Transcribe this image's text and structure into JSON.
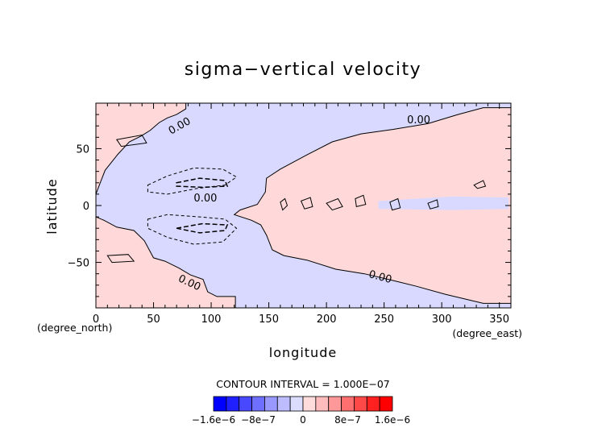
{
  "chart_data": {
    "type": "heatmap",
    "title": "sigma−vertical velocity",
    "xlabel": "longitude",
    "ylabel": "latitude",
    "x_unit": "(degree_east)",
    "y_unit": "(degree_north)",
    "xlim": [
      0,
      360
    ],
    "ylim": [
      -90,
      90
    ],
    "x_ticks": [
      0,
      50,
      100,
      150,
      200,
      250,
      300,
      350
    ],
    "y_ticks": [
      -50,
      0,
      50
    ],
    "contour_interval_text": "CONTOUR INTERVAL = 1.000E−07",
    "contour_label": "0.00",
    "colorbar": {
      "tick_labels": [
        "−1.6e−6",
        "−8e−7",
        "0",
        "8e−7",
        "1.6e−6"
      ],
      "tick_values": [
        -1.6e-06,
        -8e-07,
        0,
        8e-07,
        1.6e-06
      ],
      "colors": [
        "#0000ff",
        "#2020ff",
        "#4848ff",
        "#6f6fff",
        "#9898ff",
        "#bcbcff",
        "#dcdcff",
        "#ffdcdc",
        "#ffbcbc",
        "#ff9898",
        "#ff6f6f",
        "#ff4848",
        "#ff2020",
        "#ff0000"
      ]
    },
    "positive_color": "#ffd9d9",
    "negative_color": "#d9d9ff",
    "positive_regions": [
      [
        [
          0,
          90
        ],
        [
          78,
          90
        ],
        [
          78,
          85
        ],
        [
          70,
          80
        ],
        [
          62,
          77
        ],
        [
          55,
          73
        ],
        [
          47,
          66
        ],
        [
          39,
          61
        ],
        [
          29,
          56
        ],
        [
          19,
          45
        ],
        [
          8,
          31
        ],
        [
          3,
          18
        ],
        [
          0,
          10
        ]
      ],
      [
        [
          0,
          -10
        ],
        [
          7,
          -13
        ],
        [
          18,
          -19
        ],
        [
          33,
          -22
        ],
        [
          42,
          -31
        ],
        [
          50,
          -46
        ],
        [
          60,
          -49
        ],
        [
          72,
          -55
        ],
        [
          82,
          -61
        ],
        [
          93,
          -65
        ],
        [
          97,
          -76
        ],
        [
          105,
          -80
        ],
        [
          121,
          -80
        ],
        [
          121,
          -90
        ],
        [
          0,
          -90
        ]
      ],
      [
        [
          360,
          86
        ],
        [
          336,
          86
        ],
        [
          314,
          80
        ],
        [
          288,
          72
        ],
        [
          258,
          67
        ],
        [
          230,
          63
        ],
        [
          205,
          56
        ],
        [
          182,
          44
        ],
        [
          160,
          32
        ],
        [
          148,
          24
        ],
        [
          147,
          12
        ],
        [
          140,
          1
        ],
        [
          125,
          -4
        ],
        [
          120,
          -8
        ],
        [
          135,
          -13
        ],
        [
          143,
          -17
        ],
        [
          148,
          -26
        ],
        [
          153,
          -39
        ],
        [
          163,
          -44
        ],
        [
          183,
          -48
        ],
        [
          208,
          -56
        ],
        [
          233,
          -60
        ],
        [
          258,
          -66
        ],
        [
          278,
          -71
        ],
        [
          303,
          -78
        ],
        [
          336,
          -86
        ],
        [
          360,
          -86
        ]
      ]
    ],
    "negative_regions_in_positive": [
      [
        [
          245,
          4
        ],
        [
          310,
          8
        ],
        [
          358,
          7
        ],
        [
          358,
          -3
        ],
        [
          310,
          -4
        ],
        [
          245,
          -3
        ]
      ]
    ],
    "dashed_contours": [
      [
        [
          45,
          18
        ],
        [
          62,
          26
        ],
        [
          85,
          33
        ],
        [
          110,
          32
        ],
        [
          122,
          25
        ],
        [
          112,
          18
        ],
        [
          88,
          15
        ],
        [
          62,
          10
        ],
        [
          45,
          12
        ]
      ],
      [
        [
          45,
          -12
        ],
        [
          62,
          -8
        ],
        [
          90,
          -10
        ],
        [
          112,
          -12
        ],
        [
          122,
          -20
        ],
        [
          110,
          -32
        ],
        [
          85,
          -34
        ],
        [
          62,
          -28
        ],
        [
          45,
          -20
        ]
      ],
      [
        [
          70,
          20
        ],
        [
          90,
          24
        ],
        [
          112,
          22
        ],
        [
          114,
          17
        ],
        [
          92,
          16
        ],
        [
          70,
          17
        ]
      ],
      [
        [
          70,
          -20
        ],
        [
          92,
          -16
        ],
        [
          114,
          -17
        ],
        [
          112,
          -22
        ],
        [
          90,
          -24
        ],
        [
          70,
          -20
        ]
      ]
    ],
    "solid_islands": [
      [
        [
          160,
          3
        ],
        [
          164,
          6
        ],
        [
          166,
          0
        ],
        [
          162,
          -4
        ]
      ],
      [
        [
          178,
          4
        ],
        [
          186,
          7
        ],
        [
          188,
          -1
        ],
        [
          181,
          -3
        ]
      ],
      [
        [
          200,
          2
        ],
        [
          210,
          6
        ],
        [
          214,
          -1
        ],
        [
          205,
          -4
        ]
      ],
      [
        [
          225,
          6
        ],
        [
          232,
          9
        ],
        [
          234,
          1
        ],
        [
          226,
          -1
        ]
      ],
      [
        [
          255,
          3
        ],
        [
          262,
          6
        ],
        [
          264,
          -2
        ],
        [
          257,
          -4
        ]
      ],
      [
        [
          288,
          2
        ],
        [
          296,
          5
        ],
        [
          297,
          -1
        ],
        [
          290,
          -3
        ]
      ],
      [
        [
          328,
          18
        ],
        [
          336,
          22
        ],
        [
          338,
          17
        ],
        [
          331,
          15
        ]
      ],
      [
        [
          18,
          58
        ],
        [
          40,
          62
        ],
        [
          44,
          55
        ],
        [
          22,
          52
        ]
      ],
      [
        [
          10,
          -44
        ],
        [
          28,
          -43
        ],
        [
          33,
          -49
        ],
        [
          14,
          -50
        ]
      ]
    ]
  }
}
